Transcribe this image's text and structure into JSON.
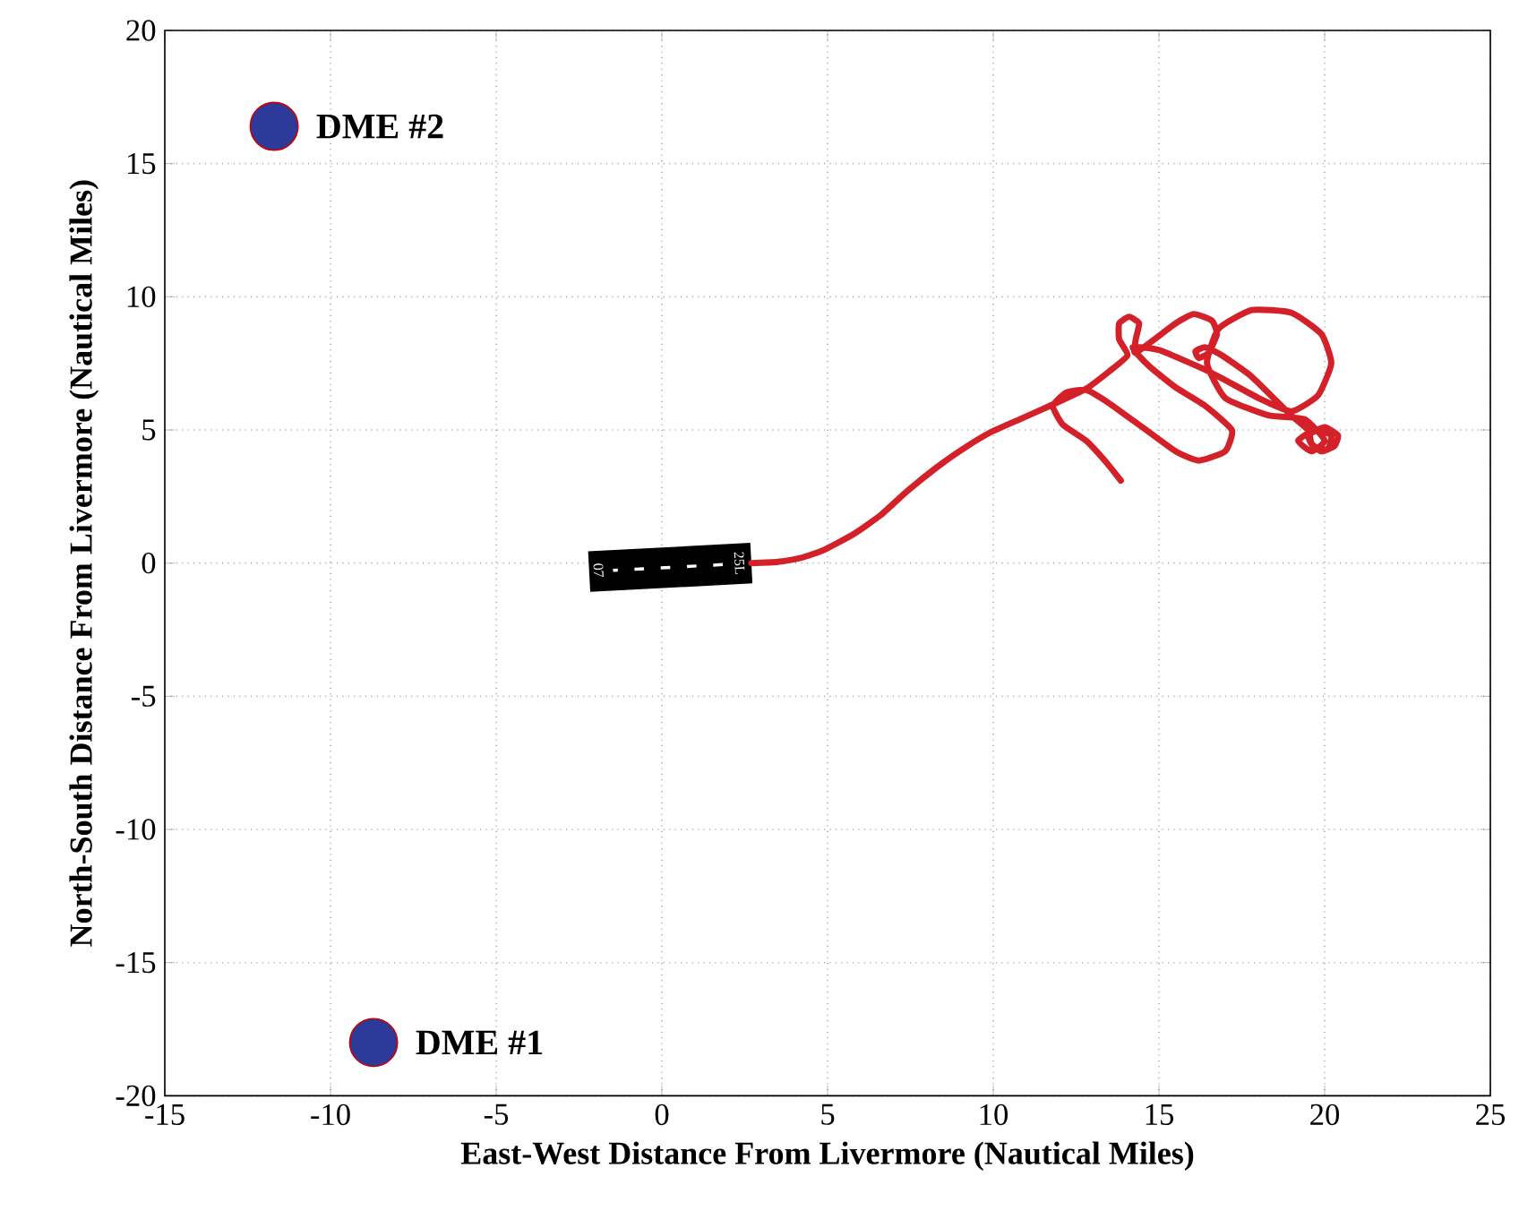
{
  "chart_data": {
    "type": "line",
    "xlabel": "East-West Distance From Livermore (Nautical Miles)",
    "ylabel": "North-South Distance From Livermore (Nautical Miles)",
    "xlim": [
      -15,
      25
    ],
    "ylim": [
      -20,
      20
    ],
    "xticks": [
      -15,
      -10,
      -5,
      0,
      5,
      10,
      15,
      20,
      25
    ],
    "yticks": [
      -20,
      -15,
      -10,
      -5,
      0,
      5,
      10,
      15,
      20
    ],
    "grid": true,
    "annotations": [
      "07",
      "25L"
    ],
    "legend": "left",
    "series": [
      {
        "color": "#d42028",
        "x": [
          2.7,
          3.5,
          4.2,
          4.9,
          5.8,
          6.6,
          7.4,
          8.3,
          9.1,
          9.9,
          10.8,
          11.7,
          12.8,
          13.5,
          14.05,
          13.8,
          13.8,
          14.1,
          14.4,
          14.3,
          14.3,
          15.5,
          16.05,
          16.6,
          16.75,
          16.5,
          16.2,
          16.1,
          16.4,
          16.9,
          17.8,
          18.9,
          19.5,
          19.6,
          19.9,
          20.3,
          20.4,
          20.0,
          19.5,
          19.7,
          20.1,
          20.2,
          19.7,
          19.2,
          19.6,
          20.0,
          19.4,
          18.3,
          17.0,
          16.45,
          16.8,
          17.8,
          19.0,
          19.9,
          20.2,
          19.8,
          19.0,
          18.0,
          16.5,
          15.0,
          14.2,
          14.7,
          15.5,
          16.4,
          17.2,
          17.0,
          16.2,
          15.5,
          14.5,
          13.5,
          12.8,
          12.2,
          11.8,
          12.1,
          12.8,
          13.4,
          13.85
        ],
        "values": [
          0,
          0.05,
          0.2,
          0.5,
          1.1,
          1.8,
          2.7,
          3.6,
          4.3,
          4.9,
          5.4,
          5.9,
          6.55,
          7.2,
          7.8,
          8.4,
          9.0,
          9.25,
          9.0,
          8.4,
          7.9,
          9.0,
          9.35,
          9.1,
          8.6,
          7.9,
          7.7,
          7.95,
          8.1,
          7.8,
          7.0,
          5.65,
          5.0,
          4.5,
          4.2,
          4.4,
          4.8,
          5.1,
          4.8,
          4.3,
          4.3,
          4.8,
          5.0,
          4.6,
          4.2,
          4.6,
          5.4,
          5.55,
          6.2,
          7.5,
          8.8,
          9.5,
          9.4,
          8.6,
          7.5,
          6.3,
          5.7,
          6.2,
          7.2,
          8.0,
          8.1,
          7.4,
          6.6,
          5.9,
          5.0,
          4.2,
          3.85,
          4.2,
          5.1,
          6.0,
          6.5,
          6.4,
          5.9,
          5.2,
          4.6,
          3.8,
          3.1
        ]
      },
      {
        "type": "scatter",
        "name": "DME #2",
        "color": "#2e3a9a",
        "x": [
          -11.7
        ],
        "values": [
          16.4
        ]
      },
      {
        "type": "scatter",
        "name": "DME #1",
        "color": "#2e3a9a",
        "x": [
          -8.7
        ],
        "values": [
          -18.0
        ]
      }
    ]
  }
}
